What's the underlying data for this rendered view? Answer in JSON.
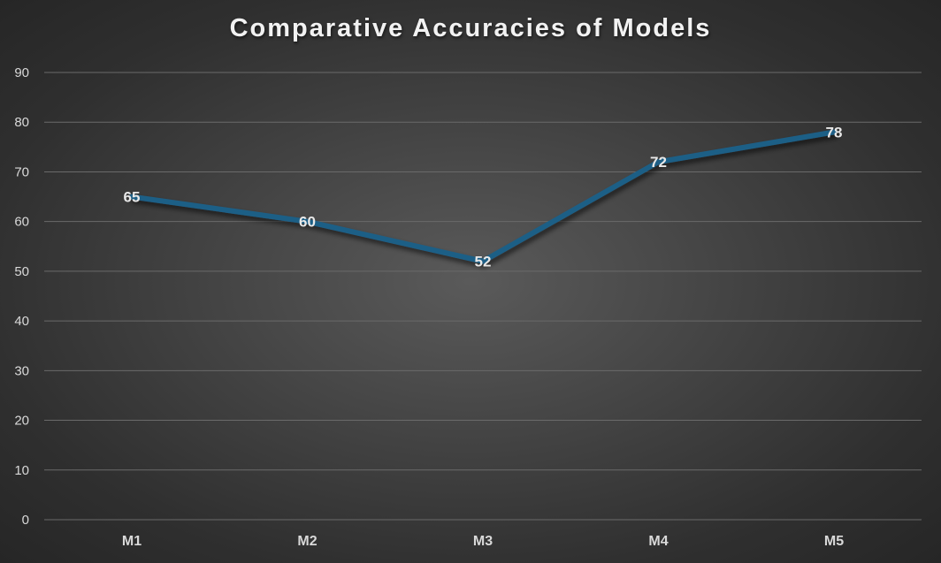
{
  "chart_data": {
    "type": "line",
    "title": "Comparative Accuracies of Models",
    "xlabel": "",
    "ylabel": "",
    "categories": [
      "M1",
      "M2",
      "M3",
      "M4",
      "M5"
    ],
    "series": [
      {
        "values": [
          65,
          60,
          52,
          72,
          78
        ],
        "color": "#1f5f86"
      }
    ],
    "ylim": [
      0,
      90
    ],
    "yticks": [
      0,
      10,
      20,
      30,
      40,
      50,
      60,
      70,
      80,
      90
    ],
    "grid": true,
    "legend": "none",
    "data_labels": true
  }
}
